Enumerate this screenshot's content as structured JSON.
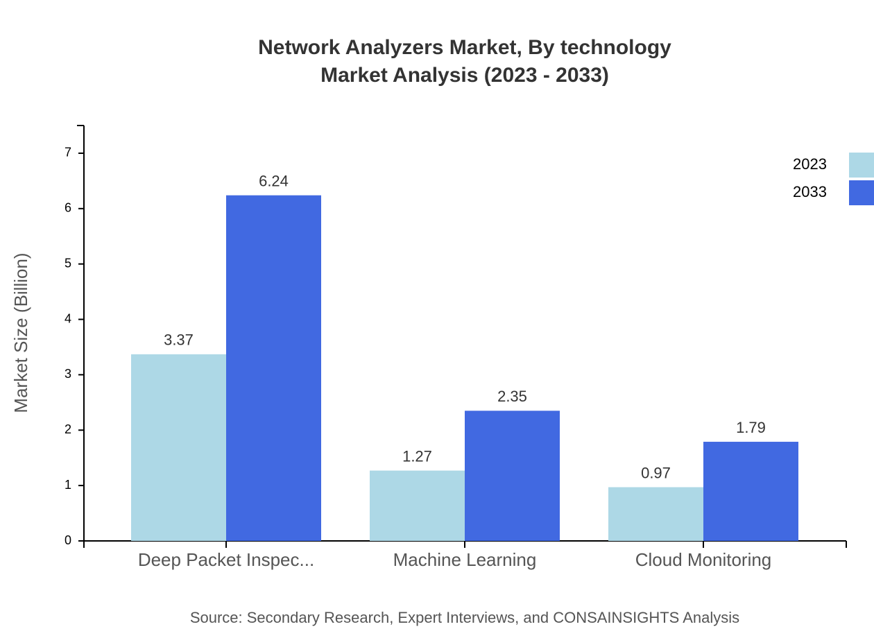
{
  "chart_data": {
    "type": "bar",
    "title": [
      "Network Analyzers Market, By technology",
      "Market Analysis (2023 - 2033)"
    ],
    "y_label": "Market Size (Billion)",
    "source": "Source: Secondary Research, Expert Interviews, and CONSAINSIGHTS Analysis",
    "categories": [
      "Deep Packet Inspec...",
      "Machine Learning",
      "Cloud Monitoring"
    ],
    "series": [
      {
        "name": "2023",
        "color": "#add8e6",
        "values": [
          3.37,
          1.27,
          0.97
        ]
      },
      {
        "name": "2033",
        "color": "#4169e1",
        "values": [
          6.24,
          2.35,
          1.79
        ]
      }
    ],
    "ylim": [
      0,
      7.5
    ],
    "yticks": [
      0,
      1,
      2,
      3,
      4,
      5,
      6,
      7
    ],
    "grid": false,
    "legend": "top-right"
  }
}
